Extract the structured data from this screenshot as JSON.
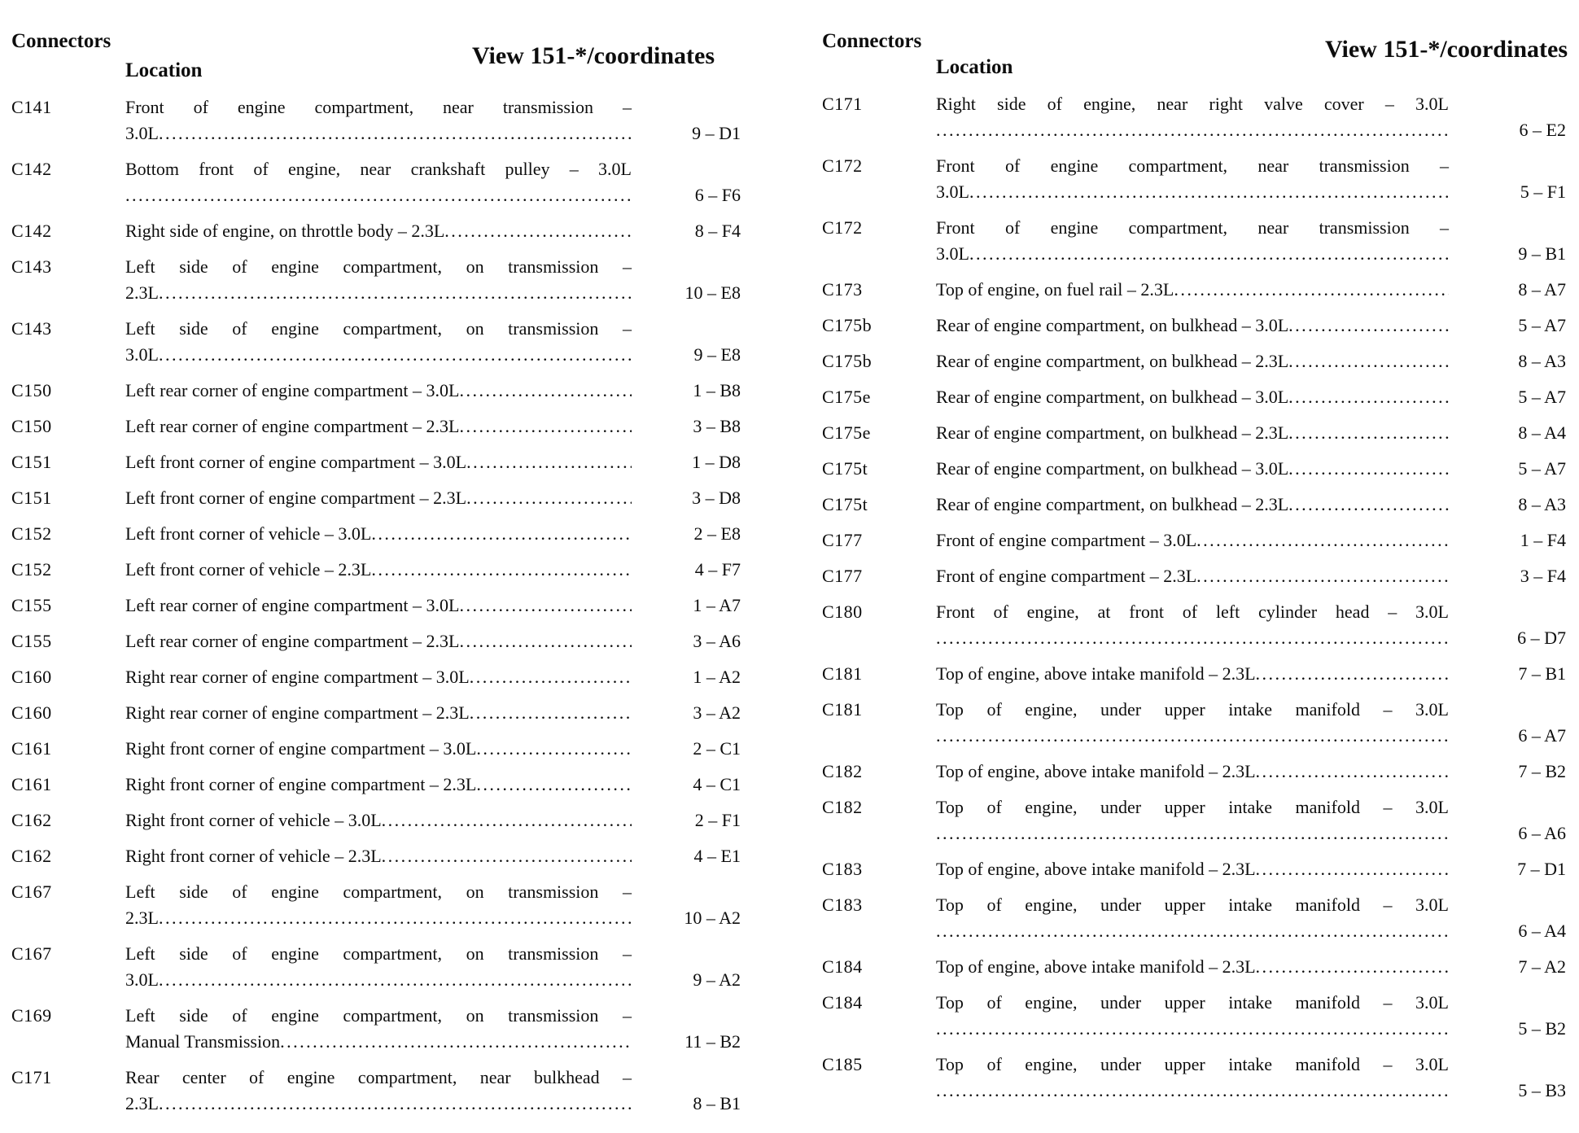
{
  "columns": [
    {
      "header": {
        "connectors": "Connectors",
        "view": "View 151-*/coordinates",
        "location": "Location"
      },
      "rows": [
        {
          "id": "C141",
          "lines": [
            "Front of engine compartment, near transmission –",
            "3.0L"
          ],
          "coord": "9 – D1"
        },
        {
          "id": "C142",
          "lines": [
            "Bottom front of engine, near crankshaft pulley – 3.0L",
            ""
          ],
          "coord": "6 – F6"
        },
        {
          "id": "C142",
          "lines": [
            "Right side of engine, on throttle body – 2.3L"
          ],
          "coord": "8 – F4"
        },
        {
          "id": "C143",
          "lines": [
            "Left side of engine compartment, on transmission –",
            "2.3L"
          ],
          "coord": "10 – E8"
        },
        {
          "id": "C143",
          "lines": [
            "Left side of engine compartment, on transmission –",
            "3.0L"
          ],
          "coord": "9 – E8"
        },
        {
          "id": "C150",
          "lines": [
            "Left rear corner of engine compartment – 3.0L"
          ],
          "coord": "1 – B8"
        },
        {
          "id": "C150",
          "lines": [
            "Left rear corner of engine compartment – 2.3L"
          ],
          "coord": "3 – B8"
        },
        {
          "id": "C151",
          "lines": [
            "Left front corner of engine compartment – 3.0L"
          ],
          "coord": "1 – D8"
        },
        {
          "id": "C151",
          "lines": [
            "Left front corner of engine compartment – 2.3L"
          ],
          "coord": "3 – D8"
        },
        {
          "id": "C152",
          "lines": [
            "Left front corner of vehicle – 3.0L"
          ],
          "coord": "2 – E8"
        },
        {
          "id": "C152",
          "lines": [
            "Left front corner of vehicle – 2.3L"
          ],
          "coord": "4 – F7"
        },
        {
          "id": "C155",
          "lines": [
            "Left rear corner of engine compartment – 3.0L"
          ],
          "coord": "1 – A7"
        },
        {
          "id": "C155",
          "lines": [
            "Left rear corner of engine compartment – 2.3L"
          ],
          "coord": "3 – A6"
        },
        {
          "id": "C160",
          "lines": [
            "Right rear corner of engine compartment – 3.0L"
          ],
          "coord": "1 – A2"
        },
        {
          "id": "C160",
          "lines": [
            "Right rear corner of engine compartment – 2.3L"
          ],
          "coord": "3 – A2"
        },
        {
          "id": "C161",
          "lines": [
            "Right front corner of engine compartment – 3.0L"
          ],
          "coord": "2 – C1"
        },
        {
          "id": "C161",
          "lines": [
            "Right front corner of engine compartment – 2.3L"
          ],
          "coord": "4 – C1"
        },
        {
          "id": "C162",
          "lines": [
            "Right front corner of vehicle – 3.0L"
          ],
          "coord": "2 – F1"
        },
        {
          "id": "C162",
          "lines": [
            "Right front corner of vehicle – 2.3L"
          ],
          "coord": "4 – E1"
        },
        {
          "id": "C167",
          "lines": [
            "Left side of engine compartment, on transmission –",
            "2.3L"
          ],
          "coord": "10 – A2"
        },
        {
          "id": "C167",
          "lines": [
            "Left side of engine compartment, on transmission –",
            "3.0L"
          ],
          "coord": "9 – A2"
        },
        {
          "id": "C169",
          "lines": [
            "Left side of engine compartment, on transmission –",
            "Manual Transmission"
          ],
          "coord": "11 – B2"
        },
        {
          "id": "C171",
          "lines": [
            "Rear center of engine compartment, near bulkhead –",
            "2.3L"
          ],
          "coord": "8 – B1"
        }
      ]
    },
    {
      "header": {
        "connectors": "Connectors",
        "view": "View 151-*/coordinates",
        "location": "Location"
      },
      "rows": [
        {
          "id": "C171",
          "lines": [
            "Right side of engine, near right valve cover – 3.0L",
            ""
          ],
          "coord": "6 – E2"
        },
        {
          "id": "C172",
          "lines": [
            "Front of engine compartment, near transmission –",
            "3.0L"
          ],
          "coord": "5 – F1"
        },
        {
          "id": "C172",
          "lines": [
            "Front of engine compartment, near transmission –",
            "3.0L"
          ],
          "coord": "9 – B1"
        },
        {
          "id": "C173",
          "lines": [
            "Top of engine, on fuel rail – 2.3L"
          ],
          "coord": "8 – A7"
        },
        {
          "id": "C175b",
          "lines": [
            "Rear of engine compartment, on bulkhead – 3.0L"
          ],
          "coord": "5 – A7"
        },
        {
          "id": "C175b",
          "lines": [
            "Rear of engine compartment, on bulkhead – 2.3L"
          ],
          "coord": "8 – A3"
        },
        {
          "id": "C175e",
          "lines": [
            "Rear of engine compartment, on bulkhead – 3.0L"
          ],
          "coord": "5 – A7"
        },
        {
          "id": "C175e",
          "lines": [
            "Rear of engine compartment, on bulkhead – 2.3L"
          ],
          "coord": "8 – A4"
        },
        {
          "id": "C175t",
          "lines": [
            "Rear of engine compartment, on bulkhead – 3.0L"
          ],
          "coord": "5 – A7"
        },
        {
          "id": "C175t",
          "lines": [
            "Rear of engine compartment, on bulkhead – 2.3L"
          ],
          "coord": "8 – A3"
        },
        {
          "id": "C177",
          "lines": [
            "Front of engine compartment – 3.0L"
          ],
          "coord": "1 – F4"
        },
        {
          "id": "C177",
          "lines": [
            "Front of engine compartment – 2.3L"
          ],
          "coord": "3 – F4"
        },
        {
          "id": "C180",
          "lines": [
            "Front of engine, at front of left cylinder head – 3.0L",
            ""
          ],
          "coord": "6 – D7"
        },
        {
          "id": "C181",
          "lines": [
            "Top of engine, above intake manifold – 2.3L"
          ],
          "coord": "7 – B1"
        },
        {
          "id": "C181",
          "lines": [
            "Top of engine, under upper intake manifold – 3.0L",
            ""
          ],
          "coord": "6 – A7"
        },
        {
          "id": "C182",
          "lines": [
            "Top of engine, above intake manifold – 2.3L"
          ],
          "coord": "7 – B2"
        },
        {
          "id": "C182",
          "lines": [
            "Top of engine, under upper intake manifold – 3.0L",
            ""
          ],
          "coord": "6 – A6"
        },
        {
          "id": "C183",
          "lines": [
            "Top of engine, above intake manifold – 2.3L"
          ],
          "coord": "7 – D1"
        },
        {
          "id": "C183",
          "lines": [
            "Top of engine, under upper intake manifold – 3.0L",
            ""
          ],
          "coord": "6 – A4"
        },
        {
          "id": "C184",
          "lines": [
            "Top of engine, above intake manifold – 2.3L"
          ],
          "coord": "7 – A2"
        },
        {
          "id": "C184",
          "lines": [
            "Top of engine, under upper intake manifold – 3.0L",
            ""
          ],
          "coord": "5 – B2"
        },
        {
          "id": "C185",
          "lines": [
            "Top of engine, under upper intake manifold – 3.0L",
            ""
          ],
          "coord": "5 – B3"
        }
      ]
    }
  ]
}
